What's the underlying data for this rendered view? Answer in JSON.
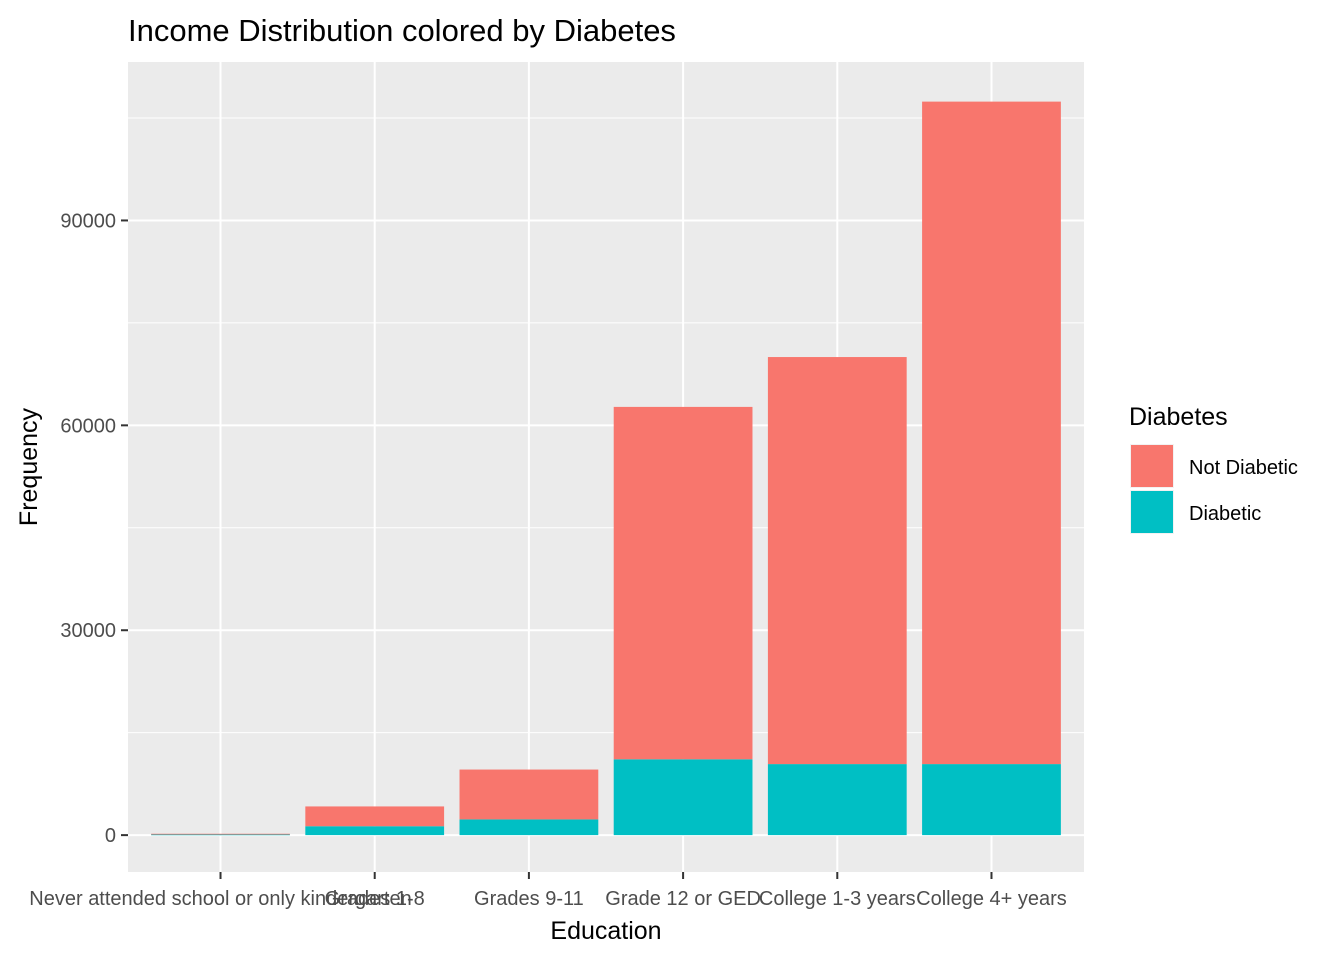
{
  "chart_data": {
    "type": "bar",
    "stacked": true,
    "title": "Income Distribution colored by Diabetes",
    "xlabel": "Education",
    "ylabel": "Frequency",
    "categories": [
      "Never attended school or only kindergarten",
      "Grades 1-8",
      "Grades 9-11",
      "Grade 12 or GED",
      "College 1-3 years",
      "College 4+ years"
    ],
    "series": [
      {
        "name": "Diabetic",
        "color": "#00BFC4",
        "values": [
          100,
          1300,
          2300,
          11100,
          10400,
          10400
        ]
      },
      {
        "name": "Not Diabetic",
        "color": "#F8766D",
        "values": [
          100,
          2900,
          7300,
          51600,
          59600,
          97000
        ]
      }
    ],
    "ylim": [
      -5400,
      113200
    ],
    "yticks": [
      0,
      30000,
      60000,
      90000
    ],
    "ytick_labels": [
      "0",
      "30000",
      "60000",
      "90000"
    ],
    "grid": true,
    "legend": {
      "title": "Diabetes",
      "position": "right",
      "items": [
        {
          "label": "Not Diabetic",
          "color": "#F8766D"
        },
        {
          "label": "Diabetic",
          "color": "#00BFC4"
        }
      ]
    }
  }
}
